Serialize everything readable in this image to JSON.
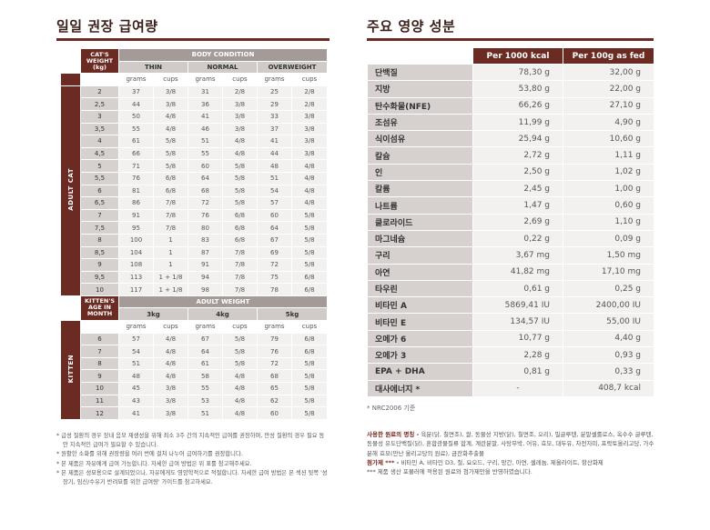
{
  "left": {
    "title": "일일 권장 급여량",
    "header": {
      "cat_weight": "CAT'S WEIGHT (kg)",
      "body_condition": "BODY CONDITION",
      "thin": "THIN",
      "normal": "NORMAL",
      "overweight": "OVERWEIGHT",
      "grams": "grams",
      "cups": "cups"
    },
    "adult_label": "ADULT CAT",
    "adult_rows": [
      [
        "2",
        "37",
        "3/8",
        "31",
        "2/8",
        "25",
        "2/8"
      ],
      [
        "2,5",
        "44",
        "3/8",
        "36",
        "3/8",
        "29",
        "2/8"
      ],
      [
        "3",
        "50",
        "4/8",
        "41",
        "3/8",
        "33",
        "3/8"
      ],
      [
        "3,5",
        "55",
        "4/8",
        "46",
        "3/8",
        "37",
        "3/8"
      ],
      [
        "4",
        "61",
        "5/8",
        "51",
        "4/8",
        "41",
        "3/8"
      ],
      [
        "4,5",
        "66",
        "5/8",
        "55",
        "4/8",
        "44",
        "3/8"
      ],
      [
        "5",
        "71",
        "5/8",
        "60",
        "5/8",
        "48",
        "4/8"
      ],
      [
        "5,5",
        "76",
        "6/8",
        "64",
        "5/8",
        "51",
        "4/8"
      ],
      [
        "6",
        "81",
        "6/8",
        "68",
        "5/8",
        "54",
        "4/8"
      ],
      [
        "6,5",
        "86",
        "7/8",
        "72",
        "5/8",
        "57",
        "4/8"
      ],
      [
        "7",
        "91",
        "7/8",
        "76",
        "6/8",
        "60",
        "5/8"
      ],
      [
        "7,5",
        "95",
        "7/8",
        "80",
        "6/8",
        "64",
        "5/8"
      ],
      [
        "8",
        "100",
        "1",
        "83",
        "6/8",
        "67",
        "5/8"
      ],
      [
        "8,5",
        "104",
        "1",
        "87",
        "7/8",
        "69",
        "5/8"
      ],
      [
        "9",
        "108",
        "1",
        "91",
        "7/8",
        "72",
        "5/8"
      ],
      [
        "9,5",
        "113",
        "1 + 1/8",
        "94",
        "7/8",
        "75",
        "6/8"
      ],
      [
        "10",
        "117",
        "1 + 1/8",
        "98",
        "7/8",
        "78",
        "6/8"
      ]
    ],
    "kitten_header": {
      "age": "KITTEN'S AGE IN MONTH",
      "adult_weight": "ADULT WEIGHT",
      "w1": "3kg",
      "w2": "4kg",
      "w3": "5kg"
    },
    "kitten_label": "KITTEN",
    "kitten_rows": [
      [
        "6",
        "57",
        "4/8",
        "67",
        "5/8",
        "79",
        "6/8"
      ],
      [
        "7",
        "54",
        "4/8",
        "64",
        "5/8",
        "76",
        "6/8"
      ],
      [
        "8",
        "51",
        "4/8",
        "61",
        "5/8",
        "72",
        "5/8"
      ],
      [
        "9",
        "48",
        "4/8",
        "58",
        "4/8",
        "68",
        "5/8"
      ],
      [
        "10",
        "45",
        "3/8",
        "55",
        "4/8",
        "65",
        "5/8"
      ],
      [
        "11",
        "43",
        "3/8",
        "53",
        "4/8",
        "62",
        "5/8"
      ],
      [
        "12",
        "41",
        "3/8",
        "51",
        "4/8",
        "60",
        "5/8"
      ]
    ],
    "notes": [
      "* 급성 질환의 경우 장내 음모 재생성을 위해 최소 3주 간의 지속적인 급여를 권장하며, 만성 질환의 경우 필요 동안 지속적인 급여가 필요할 수 있습니다.",
      "* 원활한 소화를 위해 권장량을 여러 번에 걸쳐 나누어 급여하기를 권장합니다.",
      "* 본 제품은 자유에게 급여 가능합니다. 자세한 급여 방법은 위 표를 참고해주세요.",
      "* 본 제품은 성묘용으로 설계되었으나, 자유에게도 영양학적으로 적절합니다. 자세한 급여 방법은 본 섹션 뒷쪽 '성장기, 임신/수유기 반려묘를 위한 급여량' 가이드를 참고하세요."
    ]
  },
  "right": {
    "title": "주요 영양 성분",
    "col1": "Per 1000 kcal",
    "col2": "Per 100g as fed",
    "rows": [
      [
        "단백질",
        "78,30 g",
        "32,00 g"
      ],
      [
        "지방",
        "53,80 g",
        "22,00 g"
      ],
      [
        "탄수화물(NFE)",
        "66,26 g",
        "27,10 g"
      ],
      [
        "조섬유",
        "11,99 g",
        "4,90 g"
      ],
      [
        "식이섬유",
        "25,94 g",
        "10,60 g"
      ],
      [
        "칼슘",
        "2,72 g",
        "1,11 g"
      ],
      [
        "인",
        "2,50 g",
        "1,02 g"
      ],
      [
        "칼륨",
        "2,45 g",
        "1,00 g"
      ],
      [
        "나트륨",
        "1,47 g",
        "0,60 g"
      ],
      [
        "클로라이드",
        "2,69 g",
        "1,10 g"
      ],
      [
        "마그네슘",
        "0,22 g",
        "0,09 g"
      ],
      [
        "구리",
        "3,67 mg",
        "1,50 mg"
      ],
      [
        "아연",
        "41,82 mg",
        "17,10 mg"
      ],
      [
        "타우린",
        "0,61 g",
        "0,25 g"
      ],
      [
        "비타민 A",
        "5869,41 IU",
        "2400,00 IU"
      ],
      [
        "비타민 E",
        "134,57 IU",
        "55,00 IU"
      ],
      [
        "오메가 6",
        "10,77 g",
        "4,40 g"
      ],
      [
        "오메가 3",
        "2,28 g",
        "0,93 g"
      ],
      [
        "EPA + DHA",
        "0,81 g",
        "0,33 g"
      ],
      [
        "대사에너지 *",
        "-",
        "408,7 kcal"
      ]
    ],
    "nrc": "* NRC2006 기준",
    "ingredients_label": "사용한 원료의 명칭 -",
    "ingredients_text": " 육분(닭, 칠면조), 쌀, 동물성 지방(닭), 칠면조, 오리), 밀글루텐, 분말셀룰로스, 옥수수 글루텐, 동물성 유도단백질(닭), 혼합광물질류 합계, 계란분말, 사탕무박, 어유, 효모, 대두유, 차전자피, 프락토올리고당, 가수분해 효모(만난 올리고당의 원료), 금잔화추출물",
    "additives_label": "첨가제 *** -",
    "additives_text": " 비타민 A, 비타민 D3, 철, 요오드, 구리, 망간, 아연, 셀레늄, 제올라이트, 항산화제",
    "additives_note": "*** 제품 생산 포뮬러에 적용된 원료와 첨가제만을 반영하였습니다."
  }
}
